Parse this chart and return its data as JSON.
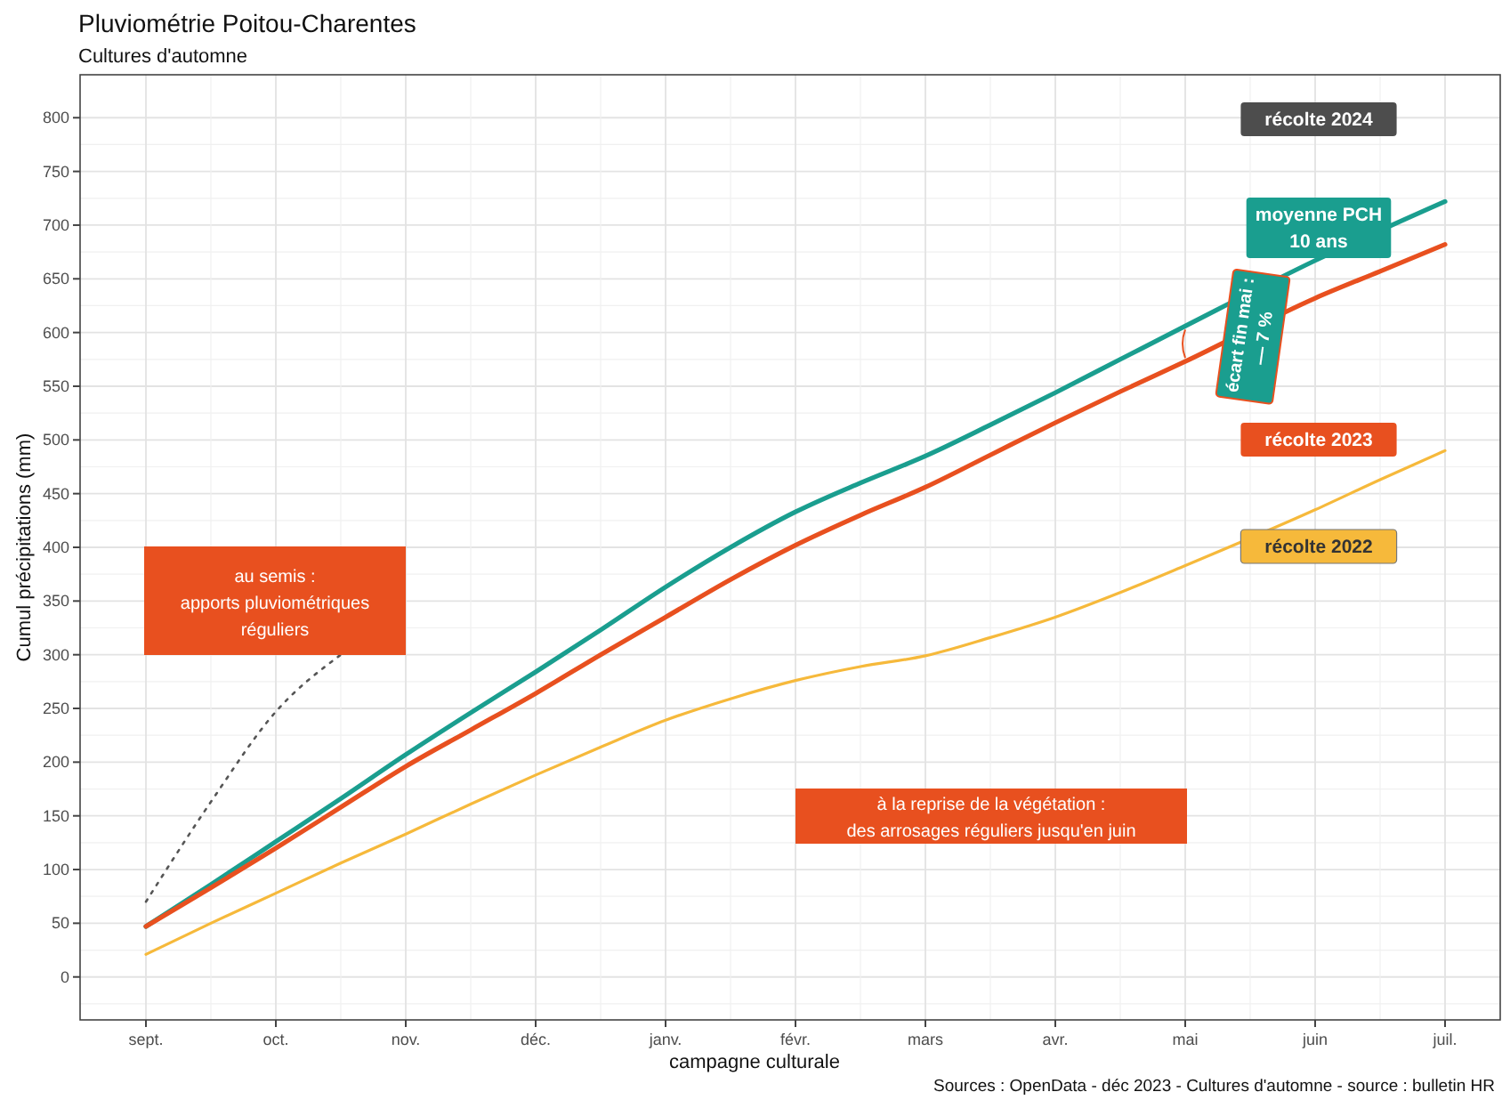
{
  "chart_data": {
    "type": "line",
    "title": "Pluviométrie Poitou-Charentes",
    "subtitle": "Cultures d'automne",
    "xlabel": "campagne culturale",
    "ylabel": "Cumul précipitations (mm)",
    "categories": [
      "sept.",
      null,
      "oct.",
      null,
      "nov.",
      null,
      "déc.",
      null,
      "janv.",
      null,
      "févr.",
      null,
      "mars",
      null,
      "avr.",
      null,
      "mai",
      null,
      "juin",
      null,
      "juil."
    ],
    "ylim": [
      -40,
      840
    ],
    "yticks": [
      0,
      50,
      100,
      150,
      200,
      250,
      300,
      350,
      400,
      450,
      500,
      550,
      600,
      650,
      700,
      750,
      800
    ],
    "grid": true,
    "marker": "none",
    "series": [
      {
        "name": "récolte 2024",
        "color": "#555555",
        "line_style": "dotted",
        "values": [
          70,
          163,
          247,
          300,
          null,
          null,
          null,
          null,
          null,
          null,
          null,
          null,
          null,
          null,
          null,
          null,
          null,
          null,
          null,
          null,
          null
        ]
      },
      {
        "name": "moyenne PCH 10 ans",
        "color": "#1a9e8f",
        "line_style": "solid",
        "values": [
          47,
          86,
          126,
          166,
          207,
          246,
          284,
          323,
          363,
          400,
          433,
          460,
          485,
          514,
          544,
          575,
          606,
          null,
          667,
          null,
          722
        ]
      },
      {
        "name": "récolte 2023",
        "color": "#e8501f",
        "line_style": "solid",
        "values": [
          47,
          83,
          120,
          158,
          196,
          230,
          264,
          300,
          335,
          370,
          402,
          430,
          456,
          486,
          516,
          545,
          573,
          null,
          632,
          657,
          682
        ]
      },
      {
        "name": "récolte 2022",
        "color": "#f6b93b",
        "line_style": "solid",
        "values": [
          21,
          50,
          78,
          106,
          133,
          161,
          188,
          214,
          239,
          259,
          276,
          289,
          299,
          316,
          335,
          358,
          383,
          null,
          435,
          463,
          490
        ]
      }
    ],
    "annotations": [
      "écart fin mai :\n— 7 %",
      "au semis :\napports pluviométriques\nréguliers",
      "à la reprise de la végétation :\ndes arrosages réguliers jusqu'en juin",
      "Sources : OpenData - déc 2023 - Cultures d'automne - source : bulletin HR"
    ]
  }
}
